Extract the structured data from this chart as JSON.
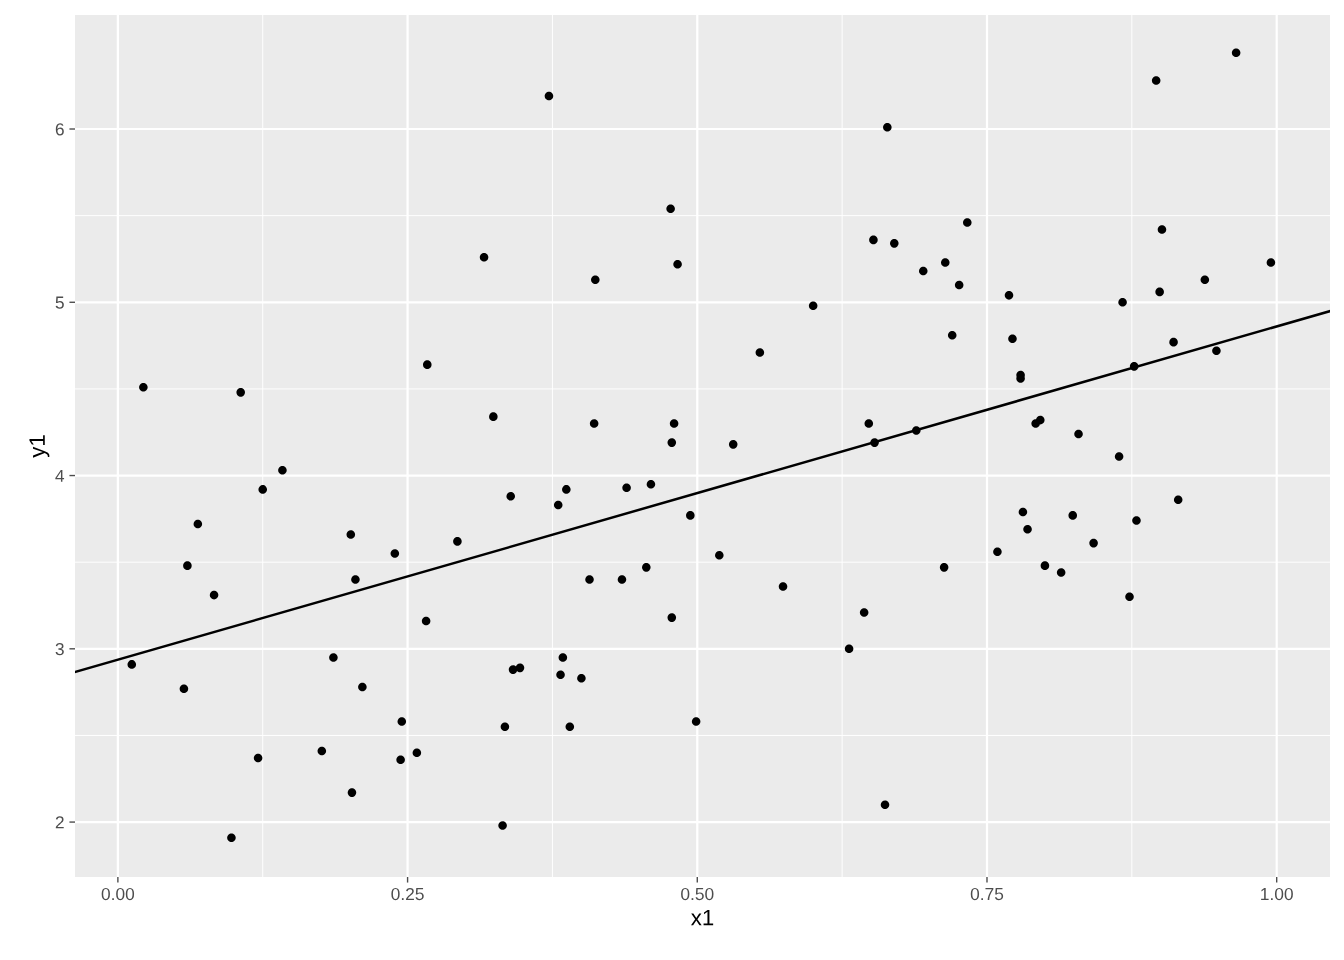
{
  "chart_data": {
    "type": "scatter",
    "xlabel": "x1",
    "ylabel": "y1",
    "xlim": [
      -0.037,
      1.046
    ],
    "ylim": [
      1.683,
      6.658
    ],
    "xticks": [
      {
        "value": 0,
        "label": "0.00"
      },
      {
        "value": 0.25,
        "label": "0.25"
      },
      {
        "value": 0.5,
        "label": "0.50"
      },
      {
        "value": 0.75,
        "label": "0.75"
      },
      {
        "value": 1,
        "label": "1.00"
      }
    ],
    "yticks": [
      2,
      3,
      4,
      5,
      6
    ],
    "grid": true,
    "series": [
      {
        "marker": "circle",
        "color": "#000000",
        "x": [
          0.012,
          0.022,
          0.057,
          0.06,
          0.069,
          0.083,
          0.098,
          0.106,
          0.121,
          0.125,
          0.142,
          0.176,
          0.186,
          0.201,
          0.202,
          0.205,
          0.211,
          0.239,
          0.245,
          0.244,
          0.258,
          0.266,
          0.267,
          0.293,
          0.316,
          0.324,
          0.332,
          0.334,
          0.339,
          0.341,
          0.347,
          0.372,
          0.38,
          0.382,
          0.384,
          0.387,
          0.39,
          0.4,
          0.407,
          0.411,
          0.412,
          0.435,
          0.439,
          0.456,
          0.46,
          0.477,
          0.478,
          0.478,
          0.48,
          0.483,
          0.494,
          0.499,
          0.519,
          0.531,
          0.554,
          0.574,
          0.6,
          0.631,
          0.644,
          0.648,
          0.652,
          0.653,
          0.662,
          0.664,
          0.67,
          0.689,
          0.695,
          0.713,
          0.714,
          0.72,
          0.726,
          0.733,
          0.759,
          0.769,
          0.772,
          0.779,
          0.779,
          0.781,
          0.785,
          0.792,
          0.796,
          0.8,
          0.814,
          0.824,
          0.829,
          0.842,
          0.864,
          0.867,
          0.873,
          0.877,
          0.879,
          0.896,
          0.899,
          0.901,
          0.911,
          0.915,
          0.938,
          0.948,
          0.965,
          0.995
        ],
        "values": [
          2.91,
          4.51,
          2.77,
          3.48,
          3.72,
          3.31,
          1.91,
          4.48,
          2.37,
          3.92,
          4.03,
          2.41,
          2.95,
          3.66,
          2.17,
          3.4,
          2.78,
          3.55,
          2.58,
          2.36,
          2.4,
          3.16,
          4.64,
          3.62,
          5.26,
          4.34,
          1.98,
          2.55,
          3.88,
          2.88,
          2.89,
          6.19,
          3.83,
          2.85,
          2.95,
          3.92,
          2.55,
          2.83,
          3.4,
          4.3,
          5.13,
          3.4,
          3.93,
          3.47,
          3.95,
          5.54,
          4.19,
          3.18,
          4.3,
          5.22,
          3.77,
          2.58,
          3.54,
          4.18,
          4.71,
          3.36,
          4.98,
          3.0,
          3.21,
          4.3,
          5.36,
          4.19,
          2.1,
          6.01,
          5.34,
          4.26,
          5.18,
          3.47,
          5.23,
          4.81,
          5.1,
          5.46,
          3.56,
          5.04,
          4.79,
          4.58,
          4.56,
          3.79,
          3.69,
          4.3,
          4.32,
          3.48,
          3.44,
          3.77,
          4.24,
          3.61,
          4.11,
          5.0,
          3.3,
          4.63,
          3.74,
          6.28,
          5.06,
          5.42,
          4.77,
          3.86,
          5.13,
          4.72,
          6.44,
          5.23
        ]
      },
      {
        "type": "line",
        "marker": "none",
        "color": "#000000",
        "x": [
          -0.037,
          1.046
        ],
        "values": [
          2.866,
          4.949
        ]
      }
    ]
  }
}
